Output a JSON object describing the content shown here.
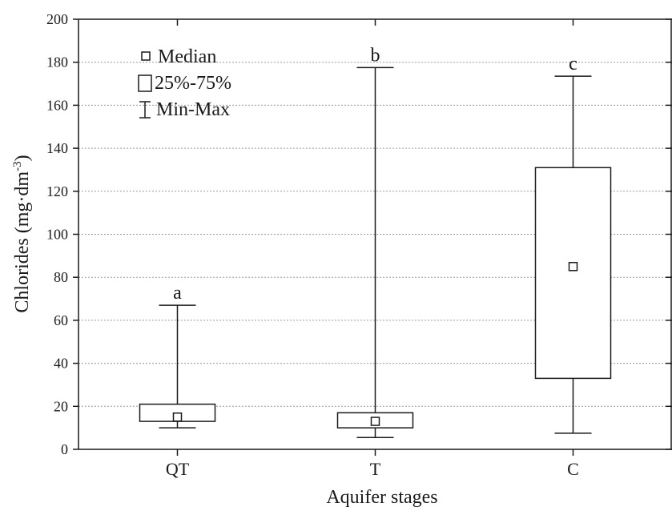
{
  "chart_data": {
    "type": "box",
    "xlabel": "Aquifer stages",
    "ylabel_main": "Chlorides (mg·dm",
    "ylabel_sup": "-3",
    "ylabel_close": ")",
    "ylim": [
      0,
      200
    ],
    "yticks": [
      0,
      20,
      40,
      60,
      80,
      100,
      120,
      140,
      160,
      180,
      200
    ],
    "grid": true,
    "legend_position": "top-left",
    "legend": {
      "median": "Median",
      "iqr": "25%-75%",
      "range": "Min-Max"
    },
    "categories": [
      "QT",
      "T",
      "C"
    ],
    "boxes": [
      {
        "category": "QT",
        "min": 10,
        "q1": 13,
        "median": 15,
        "q3": 21,
        "max": 67,
        "group_label": "a"
      },
      {
        "category": "T",
        "min": 5.5,
        "q1": 10,
        "median": 13,
        "q3": 17,
        "max": 177.5,
        "group_label": "b"
      },
      {
        "category": "C",
        "min": 7.5,
        "q1": 33,
        "median": 85,
        "q3": 131,
        "max": 173.5,
        "group_label": "c"
      }
    ]
  }
}
